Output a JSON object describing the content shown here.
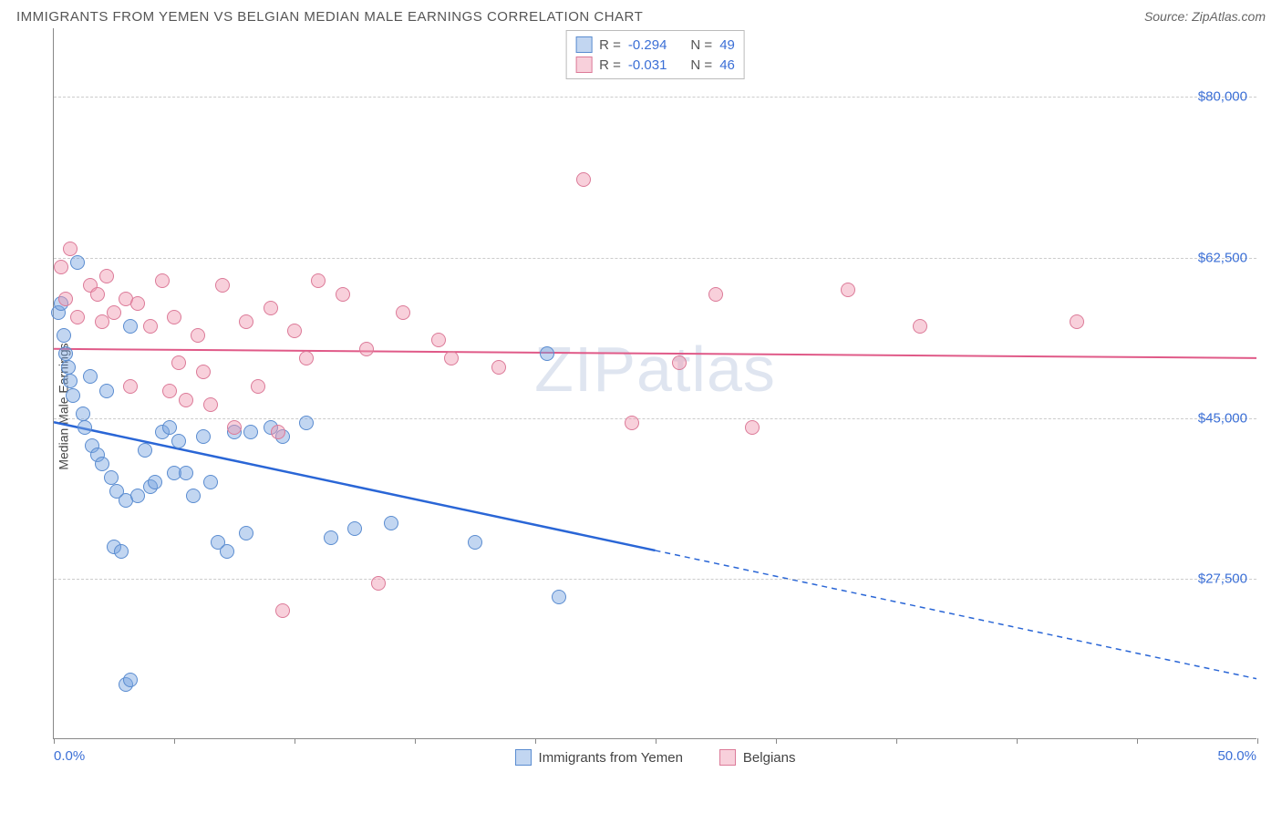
{
  "header": {
    "title": "IMMIGRANTS FROM YEMEN VS BELGIAN MEDIAN MALE EARNINGS CORRELATION CHART",
    "source": "Source: ZipAtlas.com"
  },
  "watermark": {
    "part1": "ZIP",
    "part2": "atlas"
  },
  "chart": {
    "type": "scatter",
    "ylabel": "Median Male Earnings",
    "background_color": "#ffffff",
    "grid_color": "#cccccc",
    "axis_color": "#888888",
    "xlim": [
      0,
      50
    ],
    "ylim": [
      10000,
      87500
    ],
    "x_left_label": "0.0%",
    "x_right_label": "50.0%",
    "xtick_positions": [
      0,
      5,
      10,
      15,
      20,
      25,
      30,
      35,
      40,
      45,
      50
    ],
    "ytick_grid": [
      27500,
      45000,
      62500,
      80000
    ],
    "ytick_labels": [
      "$27,500",
      "$45,000",
      "$62,500",
      "$80,000"
    ],
    "label_fontsize": 15,
    "tick_color": "#3b6fd6",
    "series": [
      {
        "name": "Immigrants from Yemen",
        "fill_color": "rgba(120,165,225,0.45)",
        "stroke_color": "#5a8cd0",
        "trend_color": "#2a66d6",
        "trend_width": 2.5,
        "trend": {
          "x1": 0,
          "y1": 44500,
          "x2": 25,
          "y2": 30500,
          "x2_ext": 50,
          "y2_ext": 16500
        },
        "r_value": "-0.294",
        "n_value": "49",
        "points": [
          [
            0.2,
            56500
          ],
          [
            0.3,
            57500
          ],
          [
            0.4,
            54000
          ],
          [
            0.5,
            52000
          ],
          [
            0.6,
            50500
          ],
          [
            0.7,
            49000
          ],
          [
            0.8,
            47500
          ],
          [
            1.0,
            62000
          ],
          [
            1.2,
            45500
          ],
          [
            1.3,
            44000
          ],
          [
            1.5,
            49500
          ],
          [
            1.6,
            42000
          ],
          [
            1.8,
            41000
          ],
          [
            2.0,
            40000
          ],
          [
            2.2,
            48000
          ],
          [
            2.4,
            38500
          ],
          [
            2.5,
            31000
          ],
          [
            2.6,
            37000
          ],
          [
            2.8,
            30500
          ],
          [
            3.0,
            36000
          ],
          [
            3.2,
            55000
          ],
          [
            3.5,
            36500
          ],
          [
            3.8,
            41500
          ],
          [
            4.0,
            37500
          ],
          [
            4.2,
            38000
          ],
          [
            4.5,
            43500
          ],
          [
            4.8,
            44000
          ],
          [
            5.0,
            39000
          ],
          [
            5.2,
            42500
          ],
          [
            5.5,
            39000
          ],
          [
            5.8,
            36500
          ],
          [
            6.2,
            43000
          ],
          [
            6.5,
            38000
          ],
          [
            6.8,
            31500
          ],
          [
            7.2,
            30500
          ],
          [
            7.5,
            43500
          ],
          [
            8.0,
            32500
          ],
          [
            8.2,
            43500
          ],
          [
            9.0,
            44000
          ],
          [
            9.5,
            43000
          ],
          [
            10.5,
            44500
          ],
          [
            11.5,
            32000
          ],
          [
            12.5,
            33000
          ],
          [
            14.0,
            33500
          ],
          [
            17.5,
            31500
          ],
          [
            20.5,
            52000
          ],
          [
            21.0,
            25500
          ],
          [
            3.0,
            16000
          ],
          [
            3.2,
            16500
          ]
        ]
      },
      {
        "name": "Belgians",
        "fill_color": "rgba(240,150,175,0.45)",
        "stroke_color": "#dc7a98",
        "trend_color": "#e05a88",
        "trend_width": 2,
        "trend": {
          "x1": 0,
          "y1": 52500,
          "x2": 50,
          "y2": 51500
        },
        "r_value": "-0.031",
        "n_value": "46",
        "points": [
          [
            0.3,
            61500
          ],
          [
            0.5,
            58000
          ],
          [
            0.7,
            63500
          ],
          [
            1.0,
            56000
          ],
          [
            1.5,
            59500
          ],
          [
            1.8,
            58500
          ],
          [
            2.0,
            55500
          ],
          [
            2.2,
            60500
          ],
          [
            2.5,
            56500
          ],
          [
            3.0,
            58000
          ],
          [
            3.2,
            48500
          ],
          [
            3.5,
            57500
          ],
          [
            4.0,
            55000
          ],
          [
            4.5,
            60000
          ],
          [
            4.8,
            48000
          ],
          [
            5.0,
            56000
          ],
          [
            5.2,
            51000
          ],
          [
            5.5,
            47000
          ],
          [
            6.0,
            54000
          ],
          [
            6.2,
            50000
          ],
          [
            6.5,
            46500
          ],
          [
            7.0,
            59500
          ],
          [
            7.5,
            44000
          ],
          [
            8.0,
            55500
          ],
          [
            8.5,
            48500
          ],
          [
            9.0,
            57000
          ],
          [
            9.3,
            43500
          ],
          [
            9.5,
            24000
          ],
          [
            10.0,
            54500
          ],
          [
            10.5,
            51500
          ],
          [
            11.0,
            60000
          ],
          [
            12.0,
            58500
          ],
          [
            13.0,
            52500
          ],
          [
            13.5,
            27000
          ],
          [
            14.5,
            56500
          ],
          [
            16.0,
            53500
          ],
          [
            16.5,
            51500
          ],
          [
            18.5,
            50500
          ],
          [
            22.0,
            71000
          ],
          [
            24.0,
            44500
          ],
          [
            26.0,
            51000
          ],
          [
            27.5,
            58500
          ],
          [
            29.0,
            44000
          ],
          [
            33.0,
            59000
          ],
          [
            36.0,
            55000
          ],
          [
            42.5,
            55500
          ]
        ]
      }
    ],
    "legend_bottom": [
      {
        "label": "Immigrants from Yemen",
        "fill": "rgba(120,165,225,0.45)",
        "stroke": "#5a8cd0"
      },
      {
        "label": "Belgians",
        "fill": "rgba(240,150,175,0.45)",
        "stroke": "#dc7a98"
      }
    ],
    "legend_top": {
      "r_label": "R =",
      "n_label": "N ="
    }
  }
}
